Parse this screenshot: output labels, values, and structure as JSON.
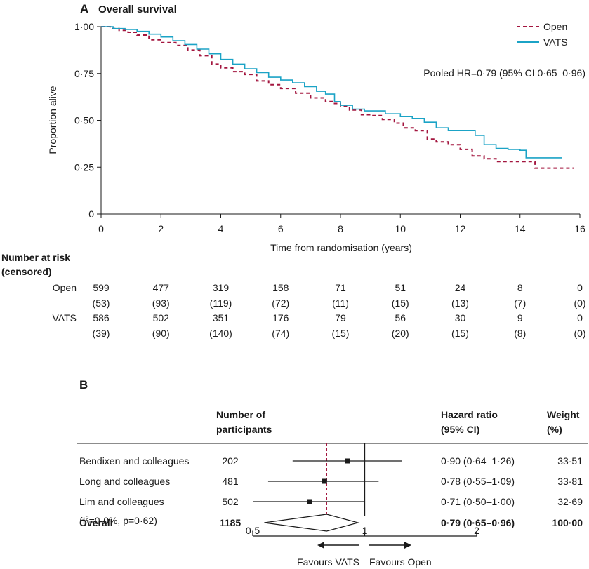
{
  "colors": {
    "open": "#a3163f",
    "vats": "#1ba3c6",
    "text": "#1a1a1a",
    "axis": "#1a1a1a"
  },
  "chart_data": [
    {
      "type": "line",
      "panel_letter": "A",
      "title": "Overall survival",
      "xlabel": "Time from randomisation (years)",
      "ylabel": "Proportion alive",
      "xlim": [
        0,
        16
      ],
      "ylim": [
        0,
        1
      ],
      "x_ticks": [
        "0",
        "2",
        "4",
        "6",
        "8",
        "10",
        "12",
        "14",
        "16"
      ],
      "y_ticks": [
        "0",
        "0·25",
        "0·50",
        "0·75",
        "1·00"
      ],
      "annotation": "Pooled HR=0·79 (95% CI 0·65–0·96)",
      "legend_position": "top-right",
      "series": [
        {
          "name": "Open",
          "style": "dashed",
          "color": "#a3163f",
          "points": [
            [
              0,
              1.0
            ],
            [
              0.3,
              0.99
            ],
            [
              0.6,
              0.98
            ],
            [
              0.9,
              0.97
            ],
            [
              1.2,
              0.955
            ],
            [
              1.6,
              0.93
            ],
            [
              2,
              0.915
            ],
            [
              2.5,
              0.9
            ],
            [
              2.9,
              0.875
            ],
            [
              3.3,
              0.845
            ],
            [
              3.7,
              0.8
            ],
            [
              4,
              0.78
            ],
            [
              4.4,
              0.76
            ],
            [
              4.8,
              0.745
            ],
            [
              5.2,
              0.71
            ],
            [
              5.6,
              0.69
            ],
            [
              6,
              0.67
            ],
            [
              6.5,
              0.645
            ],
            [
              7,
              0.62
            ],
            [
              7.5,
              0.6
            ],
            [
              7.8,
              0.59
            ],
            [
              8,
              0.575
            ],
            [
              8.3,
              0.555
            ],
            [
              8.7,
              0.53
            ],
            [
              9,
              0.525
            ],
            [
              9.4,
              0.505
            ],
            [
              9.8,
              0.485
            ],
            [
              10.1,
              0.46
            ],
            [
              10.5,
              0.445
            ],
            [
              10.9,
              0.4
            ],
            [
              11.2,
              0.385
            ],
            [
              11.6,
              0.37
            ],
            [
              12,
              0.345
            ],
            [
              12.4,
              0.31
            ],
            [
              12.8,
              0.295
            ],
            [
              13.2,
              0.28
            ],
            [
              13.7,
              0.28
            ],
            [
              14.1,
              0.28
            ],
            [
              14.5,
              0.245
            ],
            [
              15.0,
              0.245
            ],
            [
              15.8,
              0.245
            ]
          ]
        },
        {
          "name": "VATS",
          "style": "solid",
          "color": "#1ba3c6",
          "points": [
            [
              0,
              1.0
            ],
            [
              0.4,
              0.99
            ],
            [
              0.8,
              0.985
            ],
            [
              1.2,
              0.975
            ],
            [
              1.6,
              0.96
            ],
            [
              2,
              0.945
            ],
            [
              2.4,
              0.925
            ],
            [
              2.8,
              0.905
            ],
            [
              3.2,
              0.88
            ],
            [
              3.6,
              0.855
            ],
            [
              4,
              0.825
            ],
            [
              4.4,
              0.8
            ],
            [
              4.8,
              0.775
            ],
            [
              5.2,
              0.755
            ],
            [
              5.6,
              0.73
            ],
            [
              6,
              0.715
            ],
            [
              6.4,
              0.7
            ],
            [
              6.8,
              0.68
            ],
            [
              7.2,
              0.655
            ],
            [
              7.5,
              0.64
            ],
            [
              7.8,
              0.6
            ],
            [
              8,
              0.58
            ],
            [
              8.4,
              0.56
            ],
            [
              8.8,
              0.55
            ],
            [
              9.2,
              0.55
            ],
            [
              9.5,
              0.535
            ],
            [
              10,
              0.52
            ],
            [
              10.4,
              0.51
            ],
            [
              10.8,
              0.49
            ],
            [
              11.2,
              0.46
            ],
            [
              11.6,
              0.445
            ],
            [
              12,
              0.445
            ],
            [
              12.5,
              0.42
            ],
            [
              12.8,
              0.37
            ],
            [
              13.2,
              0.35
            ],
            [
              13.6,
              0.345
            ],
            [
              14,
              0.34
            ],
            [
              14.2,
              0.3
            ],
            [
              14.8,
              0.3
            ],
            [
              15.4,
              0.3
            ]
          ]
        }
      ],
      "risk_table": {
        "heading_line1": "Number at risk",
        "heading_line2": "(censored)",
        "rows": [
          {
            "label": "Open",
            "at_risk": [
              "599",
              "477",
              "319",
              "158",
              "71",
              "51",
              "24",
              "8",
              "0"
            ],
            "censored": [
              "(53)",
              "(93)",
              "(119)",
              "(72)",
              "(11)",
              "(15)",
              "(13)",
              "(7)",
              "(0)"
            ]
          },
          {
            "label": "VATS",
            "at_risk": [
              "586",
              "502",
              "351",
              "176",
              "79",
              "56",
              "30",
              "9",
              "0"
            ],
            "censored": [
              "(39)",
              "(90)",
              "(140)",
              "(74)",
              "(15)",
              "(20)",
              "(15)",
              "(8)",
              "(0)"
            ]
          }
        ]
      }
    },
    {
      "type": "forest",
      "panel_letter": "B",
      "headers": {
        "participants_line1": "Number of",
        "participants_line2": "participants",
        "hr_line1": "Hazard ratio",
        "hr_line2": "(95% CI)",
        "weight_line1": "Weight",
        "weight_line2": "(%)"
      },
      "xlim": [
        0.5,
        2
      ],
      "x_ticks": [
        {
          "value": 0.5,
          "label": "0·5"
        },
        {
          "value": 1,
          "label": "1"
        },
        {
          "value": 2,
          "label": "2"
        }
      ],
      "reference_line": 0.79,
      "studies": [
        {
          "name": "Bendixen and colleagues",
          "n": "202",
          "hr": 0.9,
          "lo": 0.64,
          "hi": 1.26,
          "hr_text": "0·90 (0·64–1·26)",
          "weight": "33·51"
        },
        {
          "name": "Long and colleagues",
          "n": "481",
          "hr": 0.78,
          "lo": 0.55,
          "hi": 1.09,
          "hr_text": "0·78 (0·55–1·09)",
          "weight": "33·81"
        },
        {
          "name": "Lim and colleagues",
          "n": "502",
          "hr": 0.71,
          "lo": 0.5,
          "hi": 1.0,
          "hr_text": "0·71 (0·50–1·00)",
          "weight": "32·69"
        }
      ],
      "overall": {
        "name": "Overall",
        "n": "1185",
        "hr": 0.79,
        "lo": 0.65,
        "hi": 0.96,
        "hr_text": "0·79 (0·65–0·96)",
        "weight": "100·00"
      },
      "heterogeneity_pre": "(I",
      "heterogeneity_sup": "2",
      "heterogeneity_post": "=0·0%, p=0·62)",
      "favours_left": "Favours VATS",
      "favours_right": "Favours Open"
    }
  ]
}
